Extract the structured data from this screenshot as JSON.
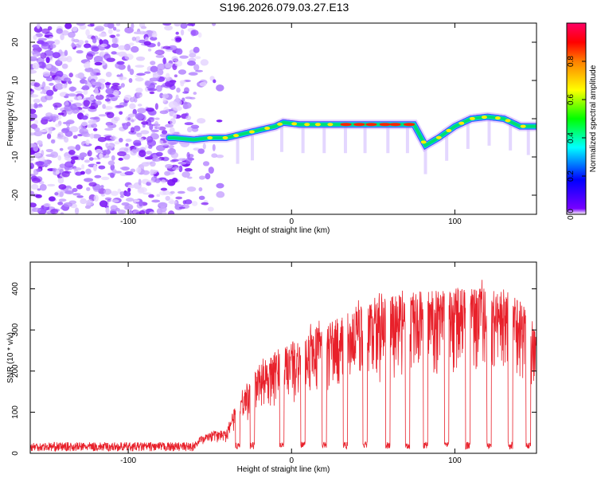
{
  "title": "S196.2026.079.03.27.E13",
  "chart_data": [
    {
      "type": "heatmap",
      "xlabel": "Height of straight line (km)",
      "ylabel": "Frequency (Hz)",
      "xlim": [
        -160,
        150
      ],
      "ylim": [
        -25,
        25
      ],
      "xticks": [
        -100,
        0,
        100
      ],
      "yticks": [
        -20,
        -10,
        0,
        10,
        20
      ],
      "colorbar": {
        "label": "Normalized spectral amplitude",
        "range": [
          0,
          1
        ],
        "ticks": [
          0.0,
          0.2,
          0.4,
          0.6,
          0.8
        ]
      },
      "ridge": [
        {
          "x": -72,
          "y": -5
        },
        {
          "x": -60,
          "y": -5.5
        },
        {
          "x": -50,
          "y": -5
        },
        {
          "x": -40,
          "y": -5
        },
        {
          "x": -30,
          "y": -4
        },
        {
          "x": -20,
          "y": -3
        },
        {
          "x": -10,
          "y": -2
        },
        {
          "x": -5,
          "y": -1
        },
        {
          "x": 5,
          "y": -1.5
        },
        {
          "x": 15,
          "y": -1.5
        },
        {
          "x": 30,
          "y": -1.5
        },
        {
          "x": 45,
          "y": -1.5
        },
        {
          "x": 60,
          "y": -1.5
        },
        {
          "x": 75,
          "y": -1.5
        },
        {
          "x": 82,
          "y": -7
        },
        {
          "x": 90,
          "y": -5
        },
        {
          "x": 100,
          "y": -2
        },
        {
          "x": 110,
          "y": 0
        },
        {
          "x": 120,
          "y": 0.5
        },
        {
          "x": 130,
          "y": 0
        },
        {
          "x": 140,
          "y": -2
        },
        {
          "x": 148,
          "y": -2
        }
      ],
      "noise_region": {
        "from": -160,
        "to": -43
      }
    },
    {
      "type": "line",
      "xlabel": "Height of straight line (km)",
      "ylabel": "SNR (10 * v/v)",
      "xlim": [
        -160,
        150
      ],
      "ylim": [
        0,
        465
      ],
      "xticks": [
        -100,
        0,
        100
      ],
      "yticks": [
        0,
        100,
        200,
        300,
        400
      ],
      "color": "#e8202a",
      "envelope": [
        {
          "x": -160,
          "y": 20
        },
        {
          "x": -60,
          "y": 22
        },
        {
          "x": -55,
          "y": 45
        },
        {
          "x": -40,
          "y": 60
        },
        {
          "x": -30,
          "y": 160
        },
        {
          "x": -20,
          "y": 210
        },
        {
          "x": -10,
          "y": 250
        },
        {
          "x": 0,
          "y": 270
        },
        {
          "x": 10,
          "y": 300
        },
        {
          "x": 20,
          "y": 320
        },
        {
          "x": 30,
          "y": 330
        },
        {
          "x": 40,
          "y": 360
        },
        {
          "x": 50,
          "y": 370
        },
        {
          "x": 60,
          "y": 380
        },
        {
          "x": 70,
          "y": 390
        },
        {
          "x": 80,
          "y": 395
        },
        {
          "x": 90,
          "y": 400
        },
        {
          "x": 100,
          "y": 405
        },
        {
          "x": 110,
          "y": 405
        },
        {
          "x": 120,
          "y": 405
        },
        {
          "x": 130,
          "y": 400
        },
        {
          "x": 140,
          "y": 380
        },
        {
          "x": 150,
          "y": 300
        }
      ],
      "dropouts": [
        -33,
        -24,
        -6,
        7,
        20,
        33,
        45,
        59,
        71,
        82,
        95,
        108,
        121,
        134,
        145
      ]
    }
  ]
}
